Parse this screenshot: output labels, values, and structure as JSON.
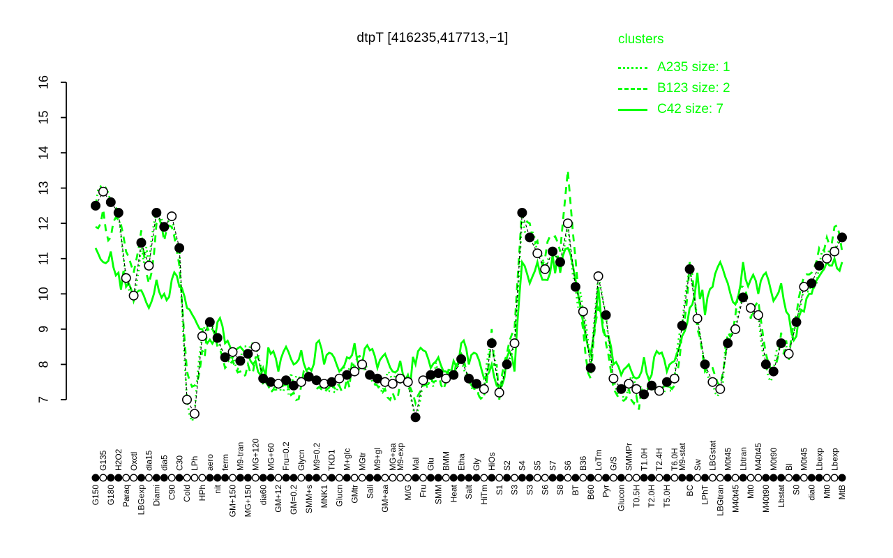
{
  "title": "dtpT [416235,417713,−1]",
  "legend": {
    "title": "clusters",
    "entries": [
      {
        "label": "A235 size: 1",
        "style": "dotted"
      },
      {
        "label": "B123 size: 2",
        "style": "dashed"
      },
      {
        "label": "C42 size: 7",
        "style": "solid"
      }
    ]
  },
  "colors": {
    "cluster": "#00FF00",
    "gene": "#000000",
    "background": "#FFFFFF"
  },
  "chart_data": {
    "type": "line",
    "title": "dtpT [416235,417713,−1]",
    "ylim": [
      7,
      16
    ],
    "yticks": [
      7,
      8,
      9,
      10,
      11,
      12,
      13,
      14,
      15,
      16
    ],
    "grid": false,
    "legend_position": "top-right",
    "marker_legend": "filled and open circles mark conditions; bottom row repeats marker type per condition",
    "categories": [
      "G150",
      "G135",
      "G180",
      "H2O2",
      "Paraq",
      "Oxctl",
      "LBGexp",
      "dia15",
      "Diami",
      "dia5",
      "C90",
      "C30",
      "Cold",
      "LPh",
      "HPh",
      "aero",
      "nit",
      "ferm",
      "GM+150",
      "M9-tran",
      "MG+150",
      "MG+120",
      "dia60",
      "MG+60",
      "GM+12",
      "Fru=0.2",
      "GM=0.2",
      "Glycn",
      "SMM+s",
      "M9=0.2",
      "MNK1",
      "TKD1",
      "Glucn",
      "M+glc",
      "GMtr",
      "MGtr",
      "Sali",
      "M9+gl",
      "GM+aa",
      "MG+aa",
      "M9-exp",
      "M/G",
      "Mal",
      "Fru",
      "Glu",
      "SMM",
      "BMM",
      "Heat",
      "Etha",
      "Salt",
      "Gly",
      "HiTm",
      "HiOs",
      "S1",
      "S2",
      "S3",
      "S4",
      "S3",
      "S5",
      "S6",
      "S7",
      "S8",
      "S6",
      "BT",
      "B36",
      "B60",
      "LoTm",
      "Pyr",
      "G/S",
      "Glucon",
      "SMMPr",
      "T0.5H",
      "T1.0H",
      "T2.0H",
      "T2.4H",
      "T5.0H",
      "T6.0H",
      "M9-stat",
      "BC",
      "Sw",
      "LPhT",
      "LBGstat",
      "LBGtran",
      "M0t45",
      "M40t45",
      "Lbtran",
      "Mt0",
      "M40t45",
      "M40t90",
      "M0t90",
      "Lbstat",
      "Bl",
      "S0",
      "M0t45",
      "dia0",
      "Lbexp",
      "Mt0",
      "Lbexp",
      "MtB"
    ],
    "label_row": [
      "b",
      "t",
      "b",
      "t",
      "b",
      "t",
      "b",
      "t",
      "b",
      "t",
      "b",
      "t",
      "b",
      "t",
      "b",
      "t",
      "b",
      "t",
      "b",
      "t",
      "b",
      "t",
      "b",
      "t",
      "b",
      "t",
      "b",
      "t",
      "b",
      "t",
      "b",
      "t",
      "b",
      "t",
      "b",
      "t",
      "b",
      "t",
      "b",
      "t",
      "t",
      "b",
      "t",
      "b",
      "t",
      "b",
      "t",
      "b",
      "t",
      "b",
      "t",
      "b",
      "t",
      "b",
      "t",
      "b",
      "t",
      "b",
      "t",
      "b",
      "t",
      "b",
      "t",
      "b",
      "t",
      "b",
      "t",
      "b",
      "t",
      "b",
      "t",
      "b",
      "t",
      "b",
      "t",
      "b",
      "t",
      "t",
      "b",
      "t",
      "b",
      "t",
      "b",
      "t",
      "b",
      "t",
      "b",
      "t",
      "b",
      "t",
      "b",
      "t",
      "b",
      "t",
      "b",
      "t",
      "b",
      "t",
      "b"
    ],
    "marker_filled": [
      1,
      0,
      1,
      1,
      0,
      0,
      1,
      0,
      1,
      1,
      0,
      1,
      0,
      0,
      0,
      1,
      1,
      1,
      0,
      1,
      1,
      0,
      1,
      1,
      0,
      1,
      1,
      0,
      1,
      1,
      0,
      1,
      0,
      1,
      0,
      0,
      1,
      1,
      0,
      0,
      0,
      0,
      1,
      0,
      1,
      1,
      0,
      1,
      1,
      1,
      1,
      0,
      1,
      0,
      1,
      0,
      1,
      1,
      0,
      0,
      1,
      1,
      0,
      1,
      0,
      1,
      0,
      1,
      0,
      1,
      0,
      0,
      1,
      1,
      0,
      1,
      0,
      1,
      1,
      0,
      1,
      0,
      0,
      1,
      0,
      1,
      0,
      0,
      1,
      1,
      1,
      0,
      1,
      0,
      1,
      1,
      0,
      0,
      1
    ],
    "gene": [
      12.5,
      12.9,
      12.6,
      12.3,
      10.45,
      9.95,
      11.45,
      10.8,
      12.3,
      11.9,
      12.2,
      11.3,
      7.0,
      6.6,
      8.8,
      9.2,
      8.75,
      8.2,
      8.35,
      8.1,
      8.3,
      8.5,
      7.6,
      7.5,
      7.45,
      7.55,
      7.4,
      7.5,
      7.65,
      7.55,
      7.45,
      7.5,
      7.6,
      7.7,
      7.8,
      8.0,
      7.7,
      7.6,
      7.5,
      7.45,
      7.6,
      7.5,
      6.5,
      7.55,
      7.7,
      7.75,
      7.6,
      7.7,
      8.15,
      7.6,
      7.45,
      7.3,
      8.6,
      7.2,
      8.0,
      8.6,
      12.3,
      11.6,
      11.15,
      10.7,
      11.2,
      10.9,
      12.0,
      10.2,
      9.5,
      7.9,
      10.5,
      9.4,
      7.6,
      7.3,
      7.45,
      7.3,
      7.15,
      7.4,
      7.25,
      7.5,
      7.6,
      9.1,
      10.7,
      9.3,
      8.0,
      7.5,
      7.3,
      8.6,
      9.0,
      9.9,
      9.6,
      9.4,
      8.0,
      7.8,
      8.6,
      8.3,
      9.2,
      10.2,
      10.3,
      10.8,
      11.0,
      11.2,
      11.6
    ],
    "B123": [
      11.9,
      12.4,
      11.6,
      12.1,
      11.2,
      10.6,
      11.8,
      10.3,
      12.0,
      11.5,
      11.9,
      10.8,
      7.8,
      7.4,
      8.4,
      8.9,
      8.5,
      7.9,
      8.1,
      7.8,
      8.0,
      8.2,
      7.4,
      7.2,
      7.3,
      7.6,
      7.2,
      7.4,
      7.7,
      7.3,
      7.2,
      7.5,
      7.4,
      7.6,
      7.9,
      8.1,
      7.6,
      7.4,
      7.3,
      7.2,
      7.5,
      7.3,
      6.9,
      7.4,
      7.6,
      7.8,
      7.5,
      7.6,
      8.3,
      7.5,
      7.3,
      7.1,
      9.0,
      7.0,
      8.3,
      9.0,
      12.5,
      12.0,
      11.5,
      11.0,
      11.6,
      11.2,
      13.5,
      11.0,
      9.0,
      7.6,
      9.6,
      8.6,
      7.3,
      7.0,
      7.3,
      7.1,
      7.0,
      7.3,
      7.2,
      7.5,
      7.4,
      8.9,
      10.9,
      9.0,
      7.8,
      7.9,
      7.4,
      8.9,
      9.4,
      10.2,
      9.3,
      9.8,
      8.3,
      7.9,
      8.9,
      8.1,
      9.4,
      10.5,
      10.6,
      11.3,
      11.6,
      11.9,
      11.2
    ],
    "C42": [
      11.3,
      10.9,
      11.2,
      10.6,
      10.2,
      9.8,
      10.1,
      9.6,
      10.4,
      10.0,
      10.4,
      10.2,
      9.6,
      9.3,
      9.0,
      8.7,
      9.2,
      8.6,
      8.2,
      8.5,
      8.3,
      8.1,
      7.9,
      8.3,
      7.8,
      8.5,
      8.0,
      8.4,
      7.9,
      8.6,
      8.0,
      8.3,
      7.8,
      8.2,
      8.6,
      8.0,
      8.4,
      7.9,
      8.3,
      7.8,
      8.1,
      7.7,
      8.0,
      8.4,
      7.9,
      8.2,
      7.8,
      8.1,
      8.6,
      8.0,
      8.3,
      7.6,
      8.0,
      7.4,
      8.2,
      7.8,
      10.9,
      10.3,
      10.9,
      10.4,
      11.1,
      10.6,
      11.3,
      10.4,
      9.2,
      8.3,
      10.2,
      8.8,
      8.0,
      7.7,
      8.0,
      7.6,
      8.2,
      7.7,
      8.3,
      7.8,
      8.1,
      8.8,
      9.6,
      10.6,
      9.4,
      10.2,
      10.9,
      10.3,
      9.7,
      10.9,
      10.4,
      10.0,
      10.6,
      9.8,
      10.3,
      9.4,
      8.8,
      9.5,
      10.0,
      10.5,
      10.9,
      11.0,
      10.9
    ],
    "series": [
      {
        "name": "A235 size: 1",
        "style": "dotted",
        "source": "gene",
        "color": "#00FF00"
      },
      {
        "name": "B123 size: 2",
        "style": "dashed",
        "source": "B123",
        "color": "#00FF00"
      },
      {
        "name": "C42 size: 7",
        "style": "solid",
        "source": "C42",
        "color": "#00FF00"
      }
    ]
  }
}
